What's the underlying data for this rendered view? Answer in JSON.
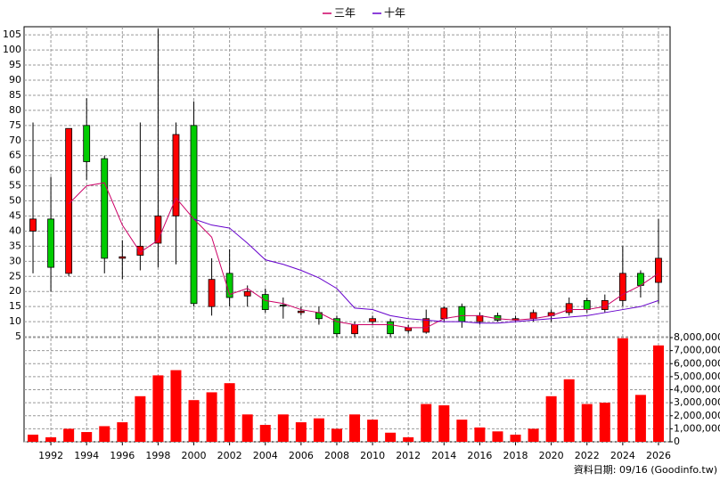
{
  "chart_data": {
    "type": "candlestick",
    "x": [
      1991,
      1992,
      1993,
      1994,
      1995,
      1996,
      1997,
      1998,
      1999,
      2000,
      2001,
      2002,
      2003,
      2004,
      2005,
      2006,
      2007,
      2008,
      2009,
      2010,
      2011,
      2012,
      2013,
      2014,
      2015,
      2016,
      2017,
      2018,
      2019,
      2020,
      2021,
      2022,
      2023,
      2024,
      2025,
      2026
    ],
    "xlim": [
      1990.5,
      2026.65
    ],
    "xticks": [
      1992,
      1994,
      1996,
      1998,
      2000,
      2002,
      2004,
      2006,
      2008,
      2010,
      2012,
      2014,
      2016,
      2018,
      2020,
      2022,
      2024,
      2026
    ],
    "ylim": [
      0,
      108
    ],
    "yticks": [
      5,
      10,
      15,
      20,
      25,
      30,
      35,
      40,
      45,
      50,
      55,
      60,
      65,
      70,
      75,
      80,
      85,
      90,
      95,
      100,
      105
    ],
    "y2lim": [
      0,
      8000000
    ],
    "y2ticks": [
      {
        "value": 0,
        "label": "0"
      },
      {
        "value": 1000000,
        "label": "1,000,000"
      },
      {
        "value": 2000000,
        "label": "2,000,000"
      },
      {
        "value": 3000000,
        "label": "3,000,000"
      },
      {
        "value": 4000000,
        "label": "4,000,000"
      },
      {
        "value": 5000000,
        "label": "5,000,000"
      },
      {
        "value": 6000000,
        "label": "6,000,000"
      },
      {
        "value": 7000000,
        "label": "7,000,000"
      },
      {
        "value": 8000000,
        "label": "8,000,000"
      }
    ],
    "grid": true,
    "up_color": "#ff0000",
    "down_color": "#00cc00",
    "open": [
      40,
      44,
      26,
      75,
      64,
      31,
      32,
      36,
      45,
      75,
      15,
      26,
      18.5,
      19,
      15.5,
      13,
      13,
      11,
      6,
      10,
      10,
      7,
      6.5,
      11,
      15,
      10,
      12,
      10.5,
      11,
      12,
      13,
      17,
      14,
      17,
      26,
      23
    ],
    "high": [
      76,
      58,
      74,
      84,
      65,
      37,
      76,
      107,
      76,
      83,
      31,
      34,
      22,
      21,
      18,
      15,
      15,
      12,
      10,
      12,
      11,
      9,
      14,
      15,
      16,
      13,
      13,
      12,
      14,
      14,
      18,
      18,
      19,
      35,
      27,
      44
    ],
    "low": [
      26,
      20,
      25,
      57,
      26,
      24,
      27,
      28,
      29,
      15,
      12,
      15,
      15,
      13,
      11,
      12,
      9,
      5,
      5,
      9,
      5,
      6,
      6,
      10,
      8,
      9,
      10,
      10,
      10,
      10,
      12,
      13,
      13,
      15,
      18,
      16
    ],
    "close": [
      44,
      28,
      74,
      63,
      31,
      31.5,
      35,
      45,
      72,
      16,
      24,
      18,
      20,
      14,
      15.3,
      13.5,
      11,
      6,
      9,
      11,
      6,
      8,
      11,
      14.5,
      10,
      12,
      10.5,
      11,
      13,
      13,
      16,
      14,
      17,
      26,
      22,
      31
    ],
    "series": [
      {
        "name": "三年",
        "color": "#cc0066",
        "values": [
          null,
          null,
          49,
          55,
          56,
          42,
          33,
          37,
          51,
          44,
          38,
          19,
          21,
          17,
          16,
          14,
          13,
          10,
          9,
          9,
          9,
          8,
          8,
          11,
          12,
          12,
          11,
          10.5,
          11,
          12,
          14,
          14,
          15,
          19,
          22,
          26
        ]
      },
      {
        "name": "十年",
        "color": "#6600cc",
        "values": [
          null,
          null,
          null,
          null,
          null,
          null,
          null,
          null,
          null,
          44,
          42,
          41,
          36,
          30.5,
          29,
          27,
          24.5,
          21,
          14.5,
          14,
          12,
          11,
          10.5,
          10,
          10,
          9.5,
          9.5,
          10,
          10.5,
          11,
          11.5,
          12,
          13,
          14,
          15,
          17
        ]
      }
    ],
    "volume": {
      "axis": "y2",
      "color": "#ff0000",
      "values": [
        550000,
        350000,
        1000000,
        750000,
        1200000,
        1500000,
        3500000,
        5100000,
        5500000,
        3200000,
        3800000,
        4500000,
        2100000,
        1300000,
        2100000,
        1500000,
        1800000,
        1000000,
        2100000,
        1700000,
        700000,
        350000,
        2900000,
        2800000,
        1700000,
        1100000,
        800000,
        550000,
        1000000,
        3500000,
        4800000,
        2900000,
        3000000,
        7950000,
        3600000,
        7400000
      ]
    },
    "footer": "資料日期: 09/16 (Goodinfo.tw)"
  }
}
